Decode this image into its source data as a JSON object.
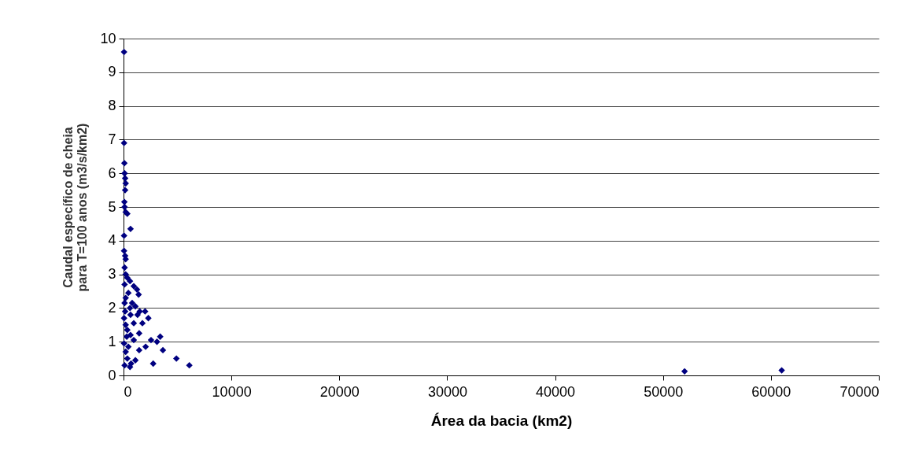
{
  "chart_data": {
    "type": "scatter",
    "xlabel": "Área da bacia (km2)",
    "ylabel": "Caudal específico de cheia\npara T=100 anos (m3/s/km2)",
    "xlim": [
      0,
      70000
    ],
    "xticks": [
      0,
      10000,
      20000,
      30000,
      40000,
      50000,
      60000,
      70000
    ],
    "ylim": [
      0,
      10
    ],
    "yticks": [
      0,
      1,
      2,
      3,
      4,
      5,
      6,
      7,
      8,
      9,
      10
    ],
    "grid": "y",
    "marker": "diamond",
    "legend": false,
    "series": [
      {
        "color": "#000080",
        "x": [
          50,
          50,
          80,
          100,
          150,
          200,
          150,
          80,
          100,
          200,
          350,
          650,
          50,
          50,
          150,
          200,
          100,
          200,
          350,
          600,
          950,
          1250,
          1400,
          200,
          100,
          600,
          1100,
          1500,
          2000,
          2300,
          1750,
          950,
          200,
          350,
          1450,
          950,
          50,
          450,
          200,
          350,
          700,
          1100,
          1450,
          2050,
          2750,
          2550,
          3100,
          3400,
          3650,
          4900,
          6100,
          52000,
          61000,
          100,
          450,
          150,
          650,
          50,
          1300,
          800,
          300,
          650,
          100,
          600
        ],
        "values": [
          9.6,
          6.9,
          6.3,
          6.0,
          5.85,
          5.7,
          5.5,
          5.15,
          5.0,
          4.85,
          4.8,
          4.35,
          4.15,
          3.7,
          3.55,
          3.45,
          3.2,
          3.0,
          2.9,
          2.8,
          2.65,
          2.55,
          2.4,
          2.3,
          2.15,
          2.0,
          2.05,
          1.9,
          1.9,
          1.7,
          1.55,
          1.55,
          1.5,
          1.35,
          1.25,
          1.05,
          0.95,
          0.85,
          0.7,
          0.5,
          0.35,
          0.45,
          0.75,
          0.85,
          0.35,
          1.05,
          1.0,
          1.15,
          0.75,
          0.5,
          0.3,
          0.12,
          0.15,
          2.7,
          2.45,
          1.9,
          1.8,
          1.7,
          1.8,
          2.15,
          1.15,
          1.2,
          0.3,
          0.25
        ]
      }
    ]
  }
}
